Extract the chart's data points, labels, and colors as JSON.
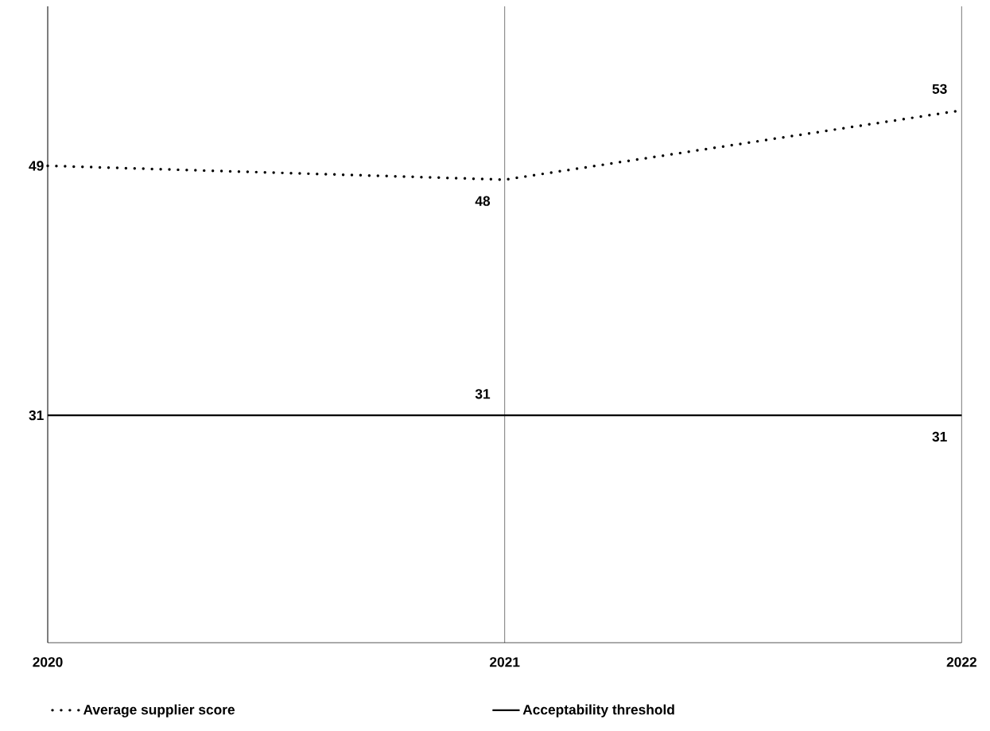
{
  "chart_data": {
    "type": "line",
    "categories": [
      "2020",
      "2021",
      "2022"
    ],
    "series": [
      {
        "name": "Average supplier score",
        "color": "#000000",
        "values": [
          49,
          48,
          53
        ],
        "line_style": "dotted"
      },
      {
        "name": "Acceptability threshold",
        "color": "#000000",
        "values": [
          31,
          31,
          31
        ],
        "line_style": "solid"
      }
    ],
    "ylim": [
      14.6,
      60.5
    ],
    "data_labels": true,
    "grid": "x",
    "legend": "bottom",
    "tick_labels": "x"
  }
}
